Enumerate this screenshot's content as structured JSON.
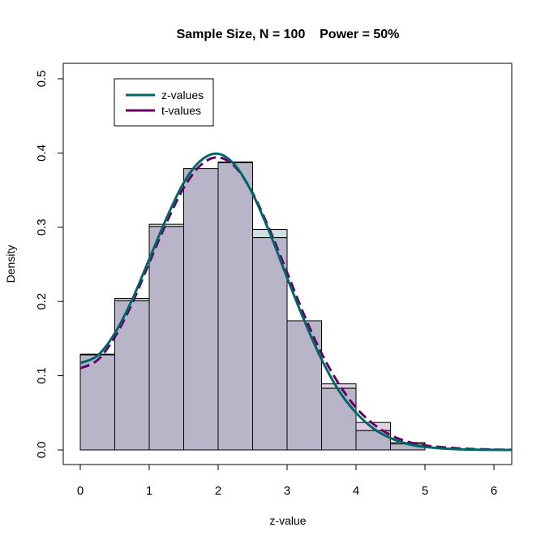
{
  "chart_data": {
    "type": "bar",
    "title": "Sample Size, N = 100    Power = 50%",
    "xlabel": "z-value",
    "ylabel": "Density",
    "xlim": [
      -0.25,
      6.25
    ],
    "ylim": [
      -0.02,
      0.52
    ],
    "xticks": [
      "0",
      "1",
      "2",
      "3",
      "4",
      "5",
      "6"
    ],
    "yticks": [
      "0.0",
      "0.1",
      "0.2",
      "0.3",
      "0.4",
      "0.5"
    ],
    "grid": false,
    "legend_position": "top-left",
    "bin_edges": [
      0,
      0.5,
      1,
      1.5,
      2,
      2.5,
      3,
      3.5,
      4,
      4.5,
      5
    ],
    "histograms": [
      {
        "name": "z-values",
        "fill": "#cde0e0",
        "values": [
          0.129,
          0.204,
          0.304,
          0.379,
          0.388,
          0.297,
          0.174,
          0.083,
          0.026,
          0.008
        ]
      },
      {
        "name": "t-values",
        "fill": "#e0cfe2",
        "values": [
          0.128,
          0.201,
          0.301,
          0.379,
          0.387,
          0.286,
          0.174,
          0.089,
          0.037,
          0.01
        ]
      }
    ],
    "overlap_fill": "#b8b5c9",
    "curve_x": [
      0,
      0.25,
      0.5,
      0.75,
      1,
      1.25,
      1.5,
      1.75,
      2,
      2.25,
      2.5,
      2.75,
      3,
      3.25,
      3.5,
      3.75,
      4,
      4.25,
      4.5,
      4.75,
      5,
      5.5,
      6,
      6.25
    ],
    "series": [
      {
        "name": "z-values",
        "color": "#006666",
        "dash": false,
        "values": [
          0.117,
          0.127,
          0.157,
          0.202,
          0.257,
          0.312,
          0.36,
          0.39,
          0.399,
          0.383,
          0.345,
          0.292,
          0.232,
          0.174,
          0.122,
          0.08,
          0.05,
          0.029,
          0.016,
          0.008,
          0.004,
          0.0008,
          0.0001,
          0
        ]
      },
      {
        "name": "t-values",
        "color": "#660066",
        "dash": true,
        "values": [
          0.11,
          0.121,
          0.152,
          0.197,
          0.252,
          0.306,
          0.353,
          0.384,
          0.394,
          0.381,
          0.346,
          0.296,
          0.239,
          0.181,
          0.13,
          0.089,
          0.057,
          0.035,
          0.02,
          0.011,
          0.006,
          0.002,
          0.0005,
          0.0002
        ]
      }
    ]
  }
}
